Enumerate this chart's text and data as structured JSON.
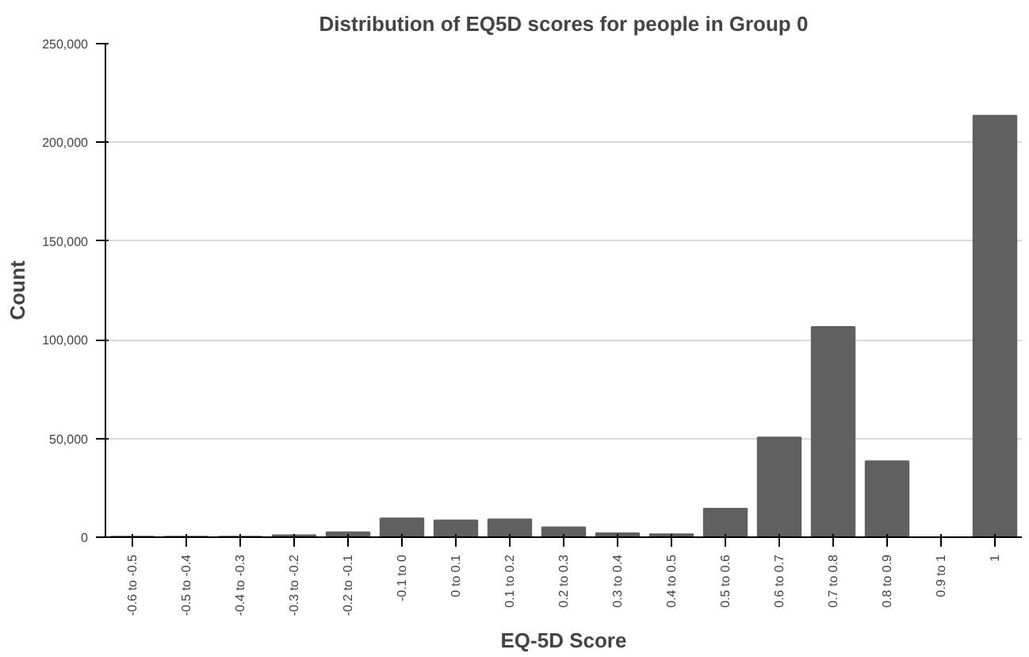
{
  "chart_data": {
    "type": "bar",
    "title": "Distribution of EQ5D scores for people in Group 0",
    "xlabel": "EQ-5D Score",
    "ylabel": "Count",
    "categories": [
      "-0.6 to -0.5",
      "-0.5 to -0.4",
      "-0.4 to -0.3",
      "-0.3 to -0.2",
      "-0.2 to -0.1",
      "-0.1 to 0",
      "0 to 0.1",
      "0.1 to 0.2",
      "0.2 to 0.3",
      "0.3 to 0.4",
      "0.4 to 0.5",
      "0.5 to 0.6",
      "0.6 to 0.7",
      "0.7 to 0.8",
      "0.8 to 0.9",
      "0.9 to 1",
      "1"
    ],
    "values": [
      300,
      300,
      300,
      1000,
      2500,
      9500,
      8500,
      9000,
      5000,
      2000,
      1500,
      14500,
      50500,
      106500,
      38500,
      0,
      213500
    ],
    "color": "#606060",
    "ylim": [
      0,
      250000
    ],
    "yticks": [
      {
        "value": 0,
        "label": "0"
      },
      {
        "value": 50000,
        "label": "50,000"
      },
      {
        "value": 100000,
        "label": "100,000"
      },
      {
        "value": 150000,
        "label": "150,000"
      },
      {
        "value": 200000,
        "label": "200,000"
      },
      {
        "value": 250000,
        "label": "250,000"
      }
    ],
    "grid": "y"
  }
}
